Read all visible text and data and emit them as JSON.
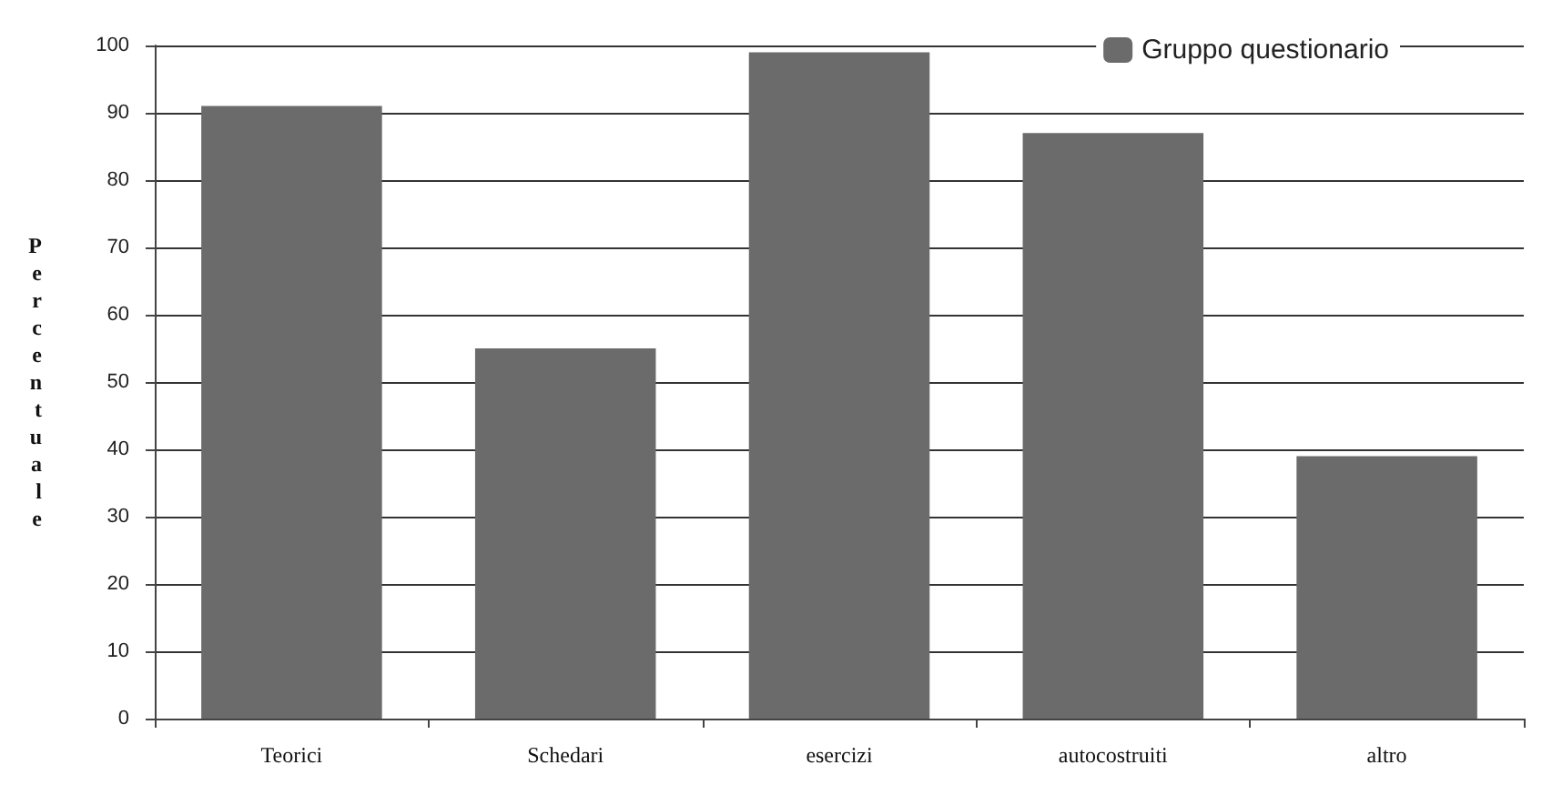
{
  "chart_data": {
    "type": "bar",
    "ylabel": "Percentuale",
    "categories": [
      "Teorici",
      "Schedari",
      "esercizi",
      "autocostruiti",
      "altro"
    ],
    "series": [
      {
        "name": "Gruppo questionario",
        "color": "#6b6b6b",
        "values": [
          91,
          55,
          99,
          87,
          39
        ]
      }
    ],
    "ylim": [
      0,
      100
    ],
    "yticks": [
      0,
      10,
      20,
      30,
      40,
      50,
      60,
      70,
      80,
      90,
      100
    ],
    "grid": "y",
    "legend": "top right"
  }
}
